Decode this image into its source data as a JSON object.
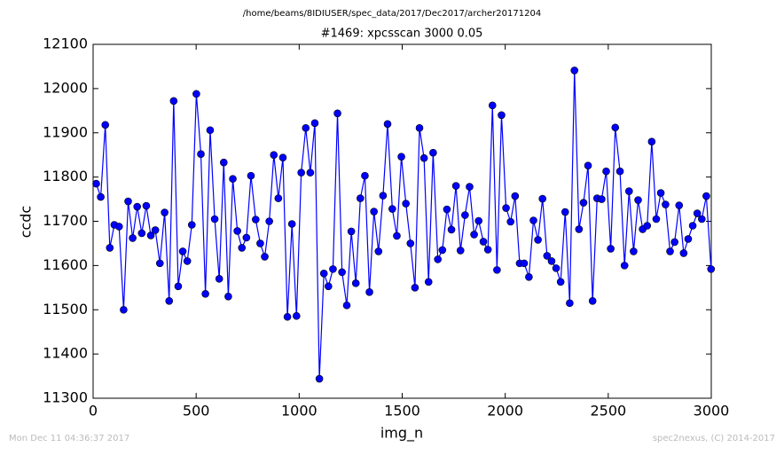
{
  "chart_data": {
    "type": "line",
    "suptitle": "/home/beams/8IDIUSER/spec_data/2017/Dec2017/archer20171204",
    "title": "#1469: xpcsscan 3000 0.05",
    "xlabel": "img_n",
    "ylabel": "ccdc",
    "footer_left": "Mon Dec 11 04:36:37 2017",
    "footer_right": "spec2nexus, (C) 2014-2017",
    "color": "#0000ff",
    "xlim": [
      0,
      3000
    ],
    "xticks": [
      0,
      500,
      1000,
      1500,
      2000,
      2500,
      3000
    ],
    "ylim": [
      11300,
      12100
    ],
    "yticks": [
      11300,
      11400,
      11500,
      11600,
      11700,
      11800,
      11900,
      12000,
      12100
    ],
    "x": [
      15,
      37,
      59,
      81,
      103,
      126,
      148,
      170,
      192,
      214,
      236,
      258,
      280,
      302,
      324,
      347,
      369,
      391,
      413,
      435,
      457,
      479,
      501,
      523,
      545,
      568,
      590,
      612,
      634,
      656,
      678,
      700,
      722,
      744,
      766,
      789,
      811,
      833,
      855,
      877,
      899,
      921,
      943,
      965,
      987,
      1010,
      1032,
      1054,
      1076,
      1098,
      1120,
      1142,
      1164,
      1186,
      1208,
      1231,
      1253,
      1275,
      1297,
      1319,
      1341,
      1363,
      1385,
      1407,
      1429,
      1452,
      1474,
      1496,
      1518,
      1540,
      1562,
      1584,
      1606,
      1628,
      1650,
      1673,
      1695,
      1717,
      1739,
      1761,
      1783,
      1805,
      1827,
      1849,
      1871,
      1894,
      1916,
      1938,
      1960,
      1982,
      2004,
      2026,
      2048,
      2070,
      2092,
      2115,
      2137,
      2159,
      2181,
      2203,
      2225,
      2247,
      2269,
      2291,
      2313,
      2336,
      2358,
      2380,
      2402,
      2424,
      2446,
      2468,
      2490,
      2512,
      2534,
      2557,
      2579,
      2601,
      2623,
      2645,
      2667,
      2689,
      2711,
      2733,
      2755,
      2778,
      2800,
      2822,
      2844,
      2866,
      2888,
      2910,
      2932,
      2954,
      2976,
      2999
    ],
    "values": [
      11785,
      11755,
      11918,
      11640,
      11692,
      11688,
      11500,
      11745,
      11662,
      11733,
      11673,
      11735,
      11668,
      11680,
      11605,
      11720,
      11520,
      11972,
      11553,
      11632,
      11610,
      11692,
      11988,
      11852,
      11536,
      11906,
      11705,
      11570,
      11833,
      11530,
      11796,
      11678,
      11640,
      11663,
      11803,
      11704,
      11650,
      11620,
      11700,
      11850,
      11752,
      11844,
      11484,
      11694,
      11486,
      11810,
      11911,
      11810,
      11922,
      11344,
      11582,
      11553,
      11592,
      11944,
      11585,
      11510,
      11677,
      11560,
      11752,
      11803,
      11540,
      11722,
      11632,
      11758,
      11920,
      11728,
      11667,
      11846,
      11740,
      11650,
      11550,
      11911,
      11843,
      11563,
      11855,
      11614,
      11635,
      11727,
      11681,
      11780,
      11634,
      11714,
      11778,
      11670,
      11701,
      11654,
      11636,
      11962,
      11590,
      11940,
      11730,
      11699,
      11757,
      11605,
      11605,
      11574,
      11702,
      11658,
      11751,
      11622,
      11610,
      11594,
      11563,
      11721,
      11515,
      12041,
      11682,
      11742,
      11826,
      11520,
      11752,
      11750,
      11813,
      11638,
      11912,
      11813,
      11600,
      11768,
      11632,
      11748,
      11682,
      11690,
      11880,
      11705,
      11764,
      11738,
      11632,
      11653,
      11736,
      11628,
      11660,
      11690,
      11718,
      11705,
      11757,
      11592
    ]
  }
}
